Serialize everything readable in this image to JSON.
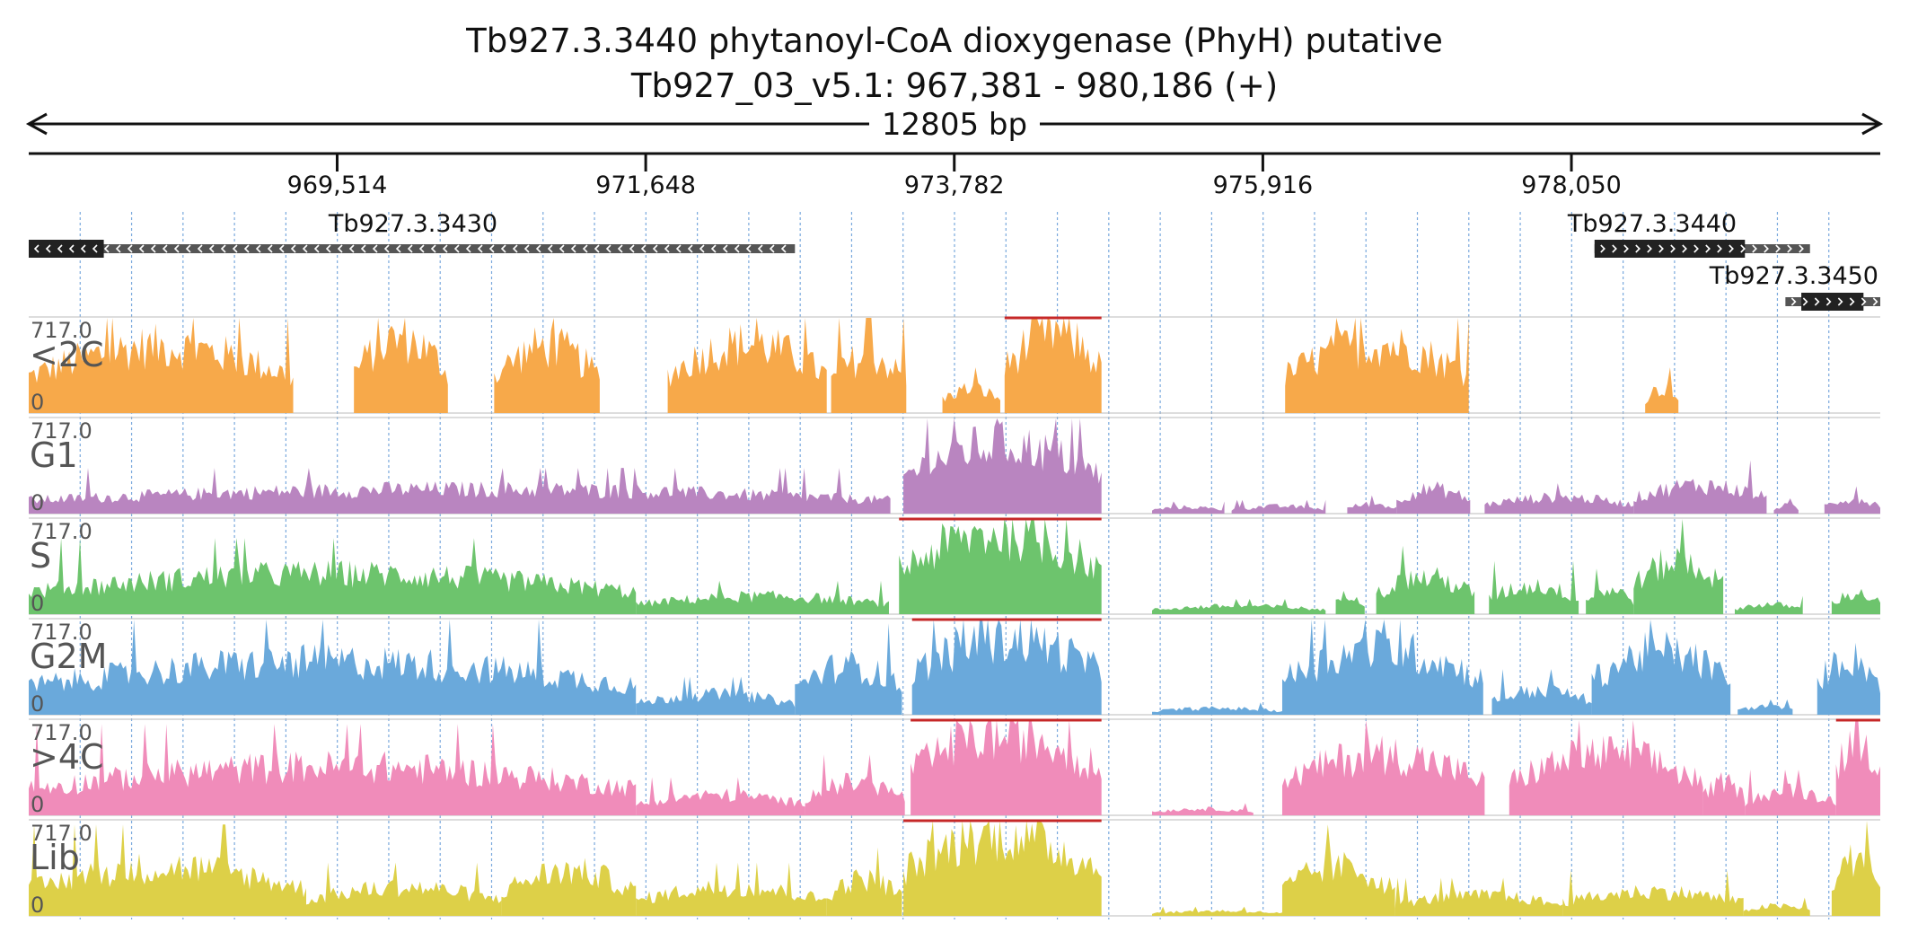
{
  "colors": {
    "axis": "#111111",
    "grid": "#7aa9dd",
    "gene_thick": "#222222",
    "gene_thin": "#555555",
    "clip_marker": "#c62828"
  },
  "chart_data": {
    "type": "area",
    "title": "Tb927.3.3440  phytanoyl-CoA dioxygenase (PhyH)  putative",
    "subtitle": "Tb927_03_v5.1: 967,381 - 980,186 (+)",
    "span_label": "12805 bp",
    "xlim": [
      967381,
      980186
    ],
    "x_ticks": [
      969514,
      971648,
      973782,
      975916,
      978050
    ],
    "x_tick_labels": [
      "969,514",
      "971,648",
      "973,782",
      "975,916",
      "978,050"
    ],
    "genes": [
      {
        "name": "Tb927.3.3430",
        "strand": "-",
        "start": 967381,
        "end": 972680,
        "thick_start": 967381,
        "thick_end": 967900
      },
      {
        "name": "Tb927.3.3440",
        "strand": "+",
        "start": 978210,
        "end": 979700,
        "thick_start": 978210,
        "thick_end": 979250
      },
      {
        "name": "Tb927.3.3450",
        "strand": "+",
        "start": 979530,
        "end": 980186,
        "thick_start": 979640,
        "thick_end": 980070
      }
    ],
    "tracks": [
      {
        "name": "<2C",
        "color": "#f7a94a",
        "max": "717.0",
        "min": "0",
        "segments": [
          [
            967381,
            969210,
            0.82
          ],
          [
            969630,
            970280,
            0.92
          ],
          [
            970600,
            971330,
            0.82
          ],
          [
            971800,
            972900,
            0.85
          ],
          [
            972930,
            973450,
            0.7
          ],
          [
            973700,
            974100,
            0.3
          ],
          [
            974130,
            974800,
            1.0
          ],
          [
            976070,
            977340,
            0.85
          ],
          [
            978560,
            978790,
            0.3
          ]
        ]
      },
      {
        "name": "G1",
        "color": "#b985c0",
        "max": "717.0",
        "min": "0",
        "segments": [
          [
            967381,
            973340,
            0.3
          ],
          [
            973430,
            974800,
            0.85
          ],
          [
            975150,
            975650,
            0.08
          ],
          [
            975700,
            976350,
            0.09
          ],
          [
            976500,
            976840,
            0.12
          ],
          [
            976840,
            977350,
            0.3
          ],
          [
            977450,
            978480,
            0.2
          ],
          [
            978480,
            979400,
            0.35
          ],
          [
            979450,
            979620,
            0.1
          ],
          [
            979800,
            980186,
            0.18
          ]
        ]
      },
      {
        "name": "S",
        "color": "#6dc46d",
        "max": "717.0",
        "min": "0",
        "segments": [
          [
            967381,
            971580,
            0.5
          ],
          [
            971580,
            973330,
            0.22
          ],
          [
            973400,
            974800,
            1.0
          ],
          [
            975150,
            976350,
            0.1
          ],
          [
            976420,
            976620,
            0.25
          ],
          [
            976700,
            977380,
            0.45
          ],
          [
            977480,
            978100,
            0.35
          ],
          [
            978150,
            978480,
            0.3
          ],
          [
            978480,
            979100,
            0.65
          ],
          [
            979180,
            979650,
            0.12
          ],
          [
            979850,
            980186,
            0.25
          ]
        ]
      },
      {
        "name": "G2M",
        "color": "#6aa9db",
        "max": "717.0",
        "min": "0",
        "segments": [
          [
            967381,
            971580,
            0.65
          ],
          [
            971580,
            972680,
            0.25
          ],
          [
            972680,
            973420,
            0.6
          ],
          [
            973490,
            974800,
            0.95
          ],
          [
            975150,
            976050,
            0.08
          ],
          [
            976050,
            977440,
            0.8
          ],
          [
            977500,
            978190,
            0.3
          ],
          [
            978190,
            979150,
            0.78
          ],
          [
            979200,
            979580,
            0.1
          ],
          [
            979750,
            980186,
            0.7
          ]
        ]
      },
      {
        "name": ">4C",
        "color": "#f08cba",
        "max": "717.0",
        "min": "0",
        "segments": [
          [
            967381,
            971580,
            0.6
          ],
          [
            971580,
            972750,
            0.25
          ],
          [
            972750,
            973440,
            0.4
          ],
          [
            973480,
            974800,
            1.0
          ],
          [
            975150,
            975850,
            0.08
          ],
          [
            976050,
            977450,
            0.75
          ],
          [
            977620,
            978960,
            0.75
          ],
          [
            978960,
            979250,
            0.4
          ],
          [
            979250,
            979880,
            0.3
          ],
          [
            979880,
            980186,
            1.0
          ]
        ]
      },
      {
        "name": "Lib",
        "color": "#ddd048",
        "max": "717.0",
        "min": "0",
        "segments": [
          [
            967381,
            969300,
            0.6
          ],
          [
            969300,
            970650,
            0.35
          ],
          [
            970650,
            971580,
            0.55
          ],
          [
            971580,
            972900,
            0.35
          ],
          [
            972900,
            973420,
            0.45
          ],
          [
            973430,
            974800,
            1.0
          ],
          [
            975150,
            976050,
            0.06
          ],
          [
            976050,
            976830,
            0.6
          ],
          [
            976830,
            977990,
            0.25
          ],
          [
            977990,
            979240,
            0.3
          ],
          [
            979240,
            979700,
            0.12
          ],
          [
            979850,
            980186,
            0.7
          ]
        ]
      }
    ]
  }
}
